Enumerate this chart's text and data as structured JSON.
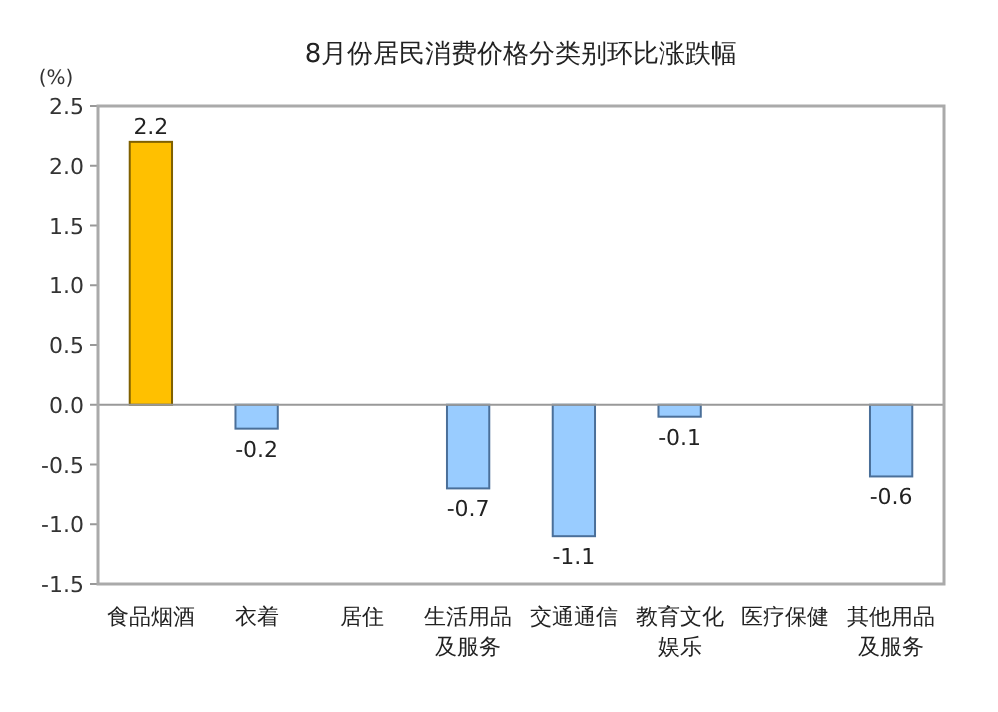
{
  "chart_data": {
    "type": "bar",
    "title": "8月份居民消费价格分类别环比涨跌幅",
    "ylabel": "(%)",
    "categories": [
      "食品烟酒",
      "衣着",
      "居住",
      "生活用品及服务",
      "交通通信",
      "教育文化娱乐",
      "医疗保健",
      "其他用品及服务"
    ],
    "values": [
      2.2,
      -0.2,
      null,
      -0.7,
      -1.1,
      -0.1,
      null,
      -0.6
    ],
    "value_labels": [
      "2.2",
      "-0.2",
      null,
      "-0.7",
      "-1.1",
      "-0.1",
      null,
      "-0.6"
    ],
    "colors": [
      "#ffc000",
      "#99ccff",
      null,
      "#99ccff",
      "#99ccff",
      "#99ccff",
      null,
      "#99ccff"
    ],
    "ylim": [
      -1.5,
      2.5
    ],
    "yticks": [
      {
        "value": 2.5,
        "label": "2.5"
      },
      {
        "value": 2.0,
        "label": "2.0"
      },
      {
        "value": 1.5,
        "label": "1.5"
      },
      {
        "value": 1.0,
        "label": "1.0"
      },
      {
        "value": 0.5,
        "label": "0.5"
      },
      {
        "value": 0.0,
        "label": "0.0"
      },
      {
        "value": -0.5,
        "label": "-0.5"
      },
      {
        "value": -1.0,
        "label": "-1.0"
      },
      {
        "value": -1.5,
        "label": "-1.5"
      }
    ]
  }
}
